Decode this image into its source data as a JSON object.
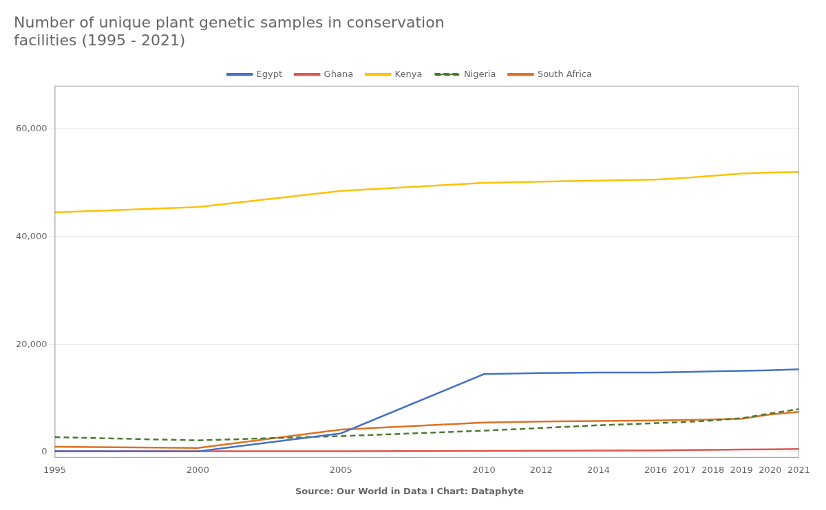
{
  "chart_data": {
    "type": "line",
    "title": "Number of unique plant genetic samples in conservation\nfacilities (1995 - 2021)",
    "annotations": [
      "Source: Our World in Data I Chart: Dataphyte"
    ],
    "x": [
      1995,
      2000,
      2005,
      2010,
      2012,
      2014,
      2016,
      2017,
      2018,
      2019,
      2020,
      2021
    ],
    "series": [
      {
        "name": "Egypt",
        "color": "#4472C4",
        "line_style": "solid",
        "values": [
          200,
          150,
          3500,
          14500,
          14700,
          14800,
          14800,
          14900,
          15000,
          15100,
          15200,
          15400
        ]
      },
      {
        "name": "Ghana",
        "color": "#E05555",
        "line_style": "solid",
        "values": [
          200,
          200,
          200,
          250,
          280,
          300,
          350,
          400,
          450,
          500,
          550,
          600
        ]
      },
      {
        "name": "Kenya",
        "color": "#FFC000",
        "line_style": "solid",
        "values": [
          44500,
          45500,
          48500,
          50000,
          50200,
          50400,
          50600,
          50900,
          51300,
          51700,
          51900,
          52000
        ]
      },
      {
        "name": "Nigeria",
        "color": "#4B7A30",
        "line_style": "dashed",
        "values": [
          2800,
          2200,
          3000,
          4000,
          4500,
          5000,
          5400,
          5600,
          5900,
          6300,
          7200,
          8000
        ]
      },
      {
        "name": "South Africa",
        "color": "#E07020",
        "line_style": "solid",
        "values": [
          1000,
          800,
          4200,
          5500,
          5700,
          5800,
          5900,
          6000,
          6100,
          6200,
          7000,
          7500
        ]
      }
    ],
    "xlim": [
      1995,
      2021
    ],
    "xticks": [
      1995,
      2000,
      2005,
      2010,
      2012,
      2014,
      2016,
      2017,
      2018,
      2019,
      2020,
      2021
    ],
    "ylim": [
      -1000,
      68000
    ],
    "yticks": [
      0,
      {
        "value": 20000,
        "label": "20,000"
      },
      {
        "value": 40000,
        "label": "40,000"
      },
      {
        "value": 60000,
        "label": "60,000"
      }
    ],
    "grid": "y",
    "legend": "top"
  }
}
